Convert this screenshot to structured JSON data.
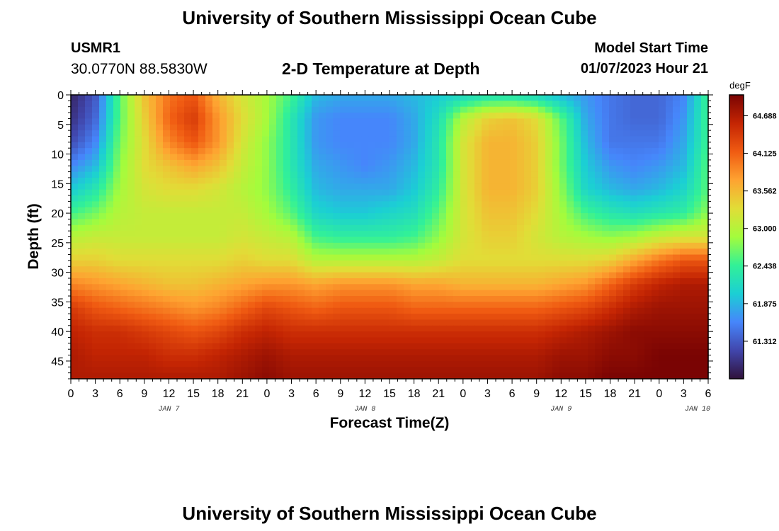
{
  "page": {
    "title_top": "University of Southern Mississippi Ocean Cube",
    "title_bottom": "University of Southern Mississippi Ocean Cube"
  },
  "header": {
    "station_id": "USMR1",
    "station_coords": "30.0770N  88.5830W",
    "plot_title": "2-D Temperature at Depth",
    "model_start_label": "Model Start Time",
    "model_start_value": "01/07/2023 Hour 21"
  },
  "chart_data": {
    "type": "heatmap",
    "title": "2-D Temperature at Depth",
    "xlabel": "Forecast Time(Z)",
    "ylabel": "Depth (ft)",
    "x_ticks": [
      "0",
      "3",
      "6",
      "9",
      "12",
      "15",
      "18",
      "21",
      "0",
      "3",
      "6",
      "9",
      "12",
      "15",
      "18",
      "21",
      "0",
      "3",
      "6",
      "9",
      "12",
      "15",
      "18",
      "21",
      "0",
      "3",
      "6"
    ],
    "x_range_hours": [
      0,
      78
    ],
    "day_labels": [
      {
        "label": "JAN 7",
        "hour": 12
      },
      {
        "label": "JAN 8",
        "hour": 36
      },
      {
        "label": "JAN 9",
        "hour": 60
      },
      {
        "label": "JAN 10",
        "hour": 81
      }
    ],
    "y_ticks": [
      0,
      5,
      10,
      15,
      20,
      25,
      30,
      35,
      40,
      45
    ],
    "ylim": [
      0,
      48
    ],
    "y_inverted": true,
    "colorbar": {
      "unit": "degF",
      "ticks": [
        "64.688",
        "64.125",
        "63.562",
        "63.000",
        "62.438",
        "61.875",
        "61.312"
      ],
      "range": [
        60.75,
        65.0
      ],
      "colormap": [
        "#30123b",
        "#4146ac",
        "#4686fb",
        "#1bcfd4",
        "#32f197",
        "#a4fc3c",
        "#e1dd37",
        "#fea331",
        "#f05b12",
        "#c42503",
        "#7a0403"
      ]
    },
    "grid": {
      "hours": [
        0,
        3,
        6,
        9,
        12,
        15,
        18,
        21,
        24,
        27,
        30,
        33,
        36,
        39,
        42,
        45,
        48,
        51,
        54,
        57,
        60,
        63,
        66,
        69,
        72,
        75,
        78
      ],
      "depths_ft": [
        0,
        4,
        8,
        12,
        16,
        20,
        24,
        28,
        32,
        36,
        40,
        44,
        48
      ],
      "values_degF": [
        [
          60.9,
          61.3,
          62.6,
          63.5,
          64.0,
          64.2,
          63.6,
          63.2,
          62.9,
          62.5,
          61.9,
          61.8,
          61.8,
          61.8,
          61.9,
          62.0,
          62.1,
          62.2,
          62.2,
          62.1,
          61.9,
          61.7,
          61.5,
          61.4,
          61.4,
          61.6,
          62.5
        ],
        [
          61.0,
          61.4,
          62.6,
          63.4,
          64.1,
          64.4,
          63.8,
          63.3,
          62.9,
          62.3,
          61.7,
          61.6,
          61.6,
          61.6,
          61.8,
          62.2,
          63.0,
          63.4,
          63.5,
          63.3,
          62.6,
          61.8,
          61.5,
          61.4,
          61.4,
          61.7,
          62.5
        ],
        [
          61.2,
          61.6,
          62.7,
          63.3,
          63.9,
          64.2,
          63.8,
          63.2,
          62.8,
          62.3,
          61.7,
          61.6,
          61.6,
          61.6,
          61.8,
          62.3,
          63.2,
          63.6,
          63.6,
          63.4,
          62.7,
          61.9,
          61.5,
          61.5,
          61.5,
          61.8,
          62.5
        ],
        [
          61.6,
          61.9,
          62.8,
          63.3,
          63.5,
          63.7,
          63.5,
          63.1,
          62.8,
          62.3,
          61.8,
          61.7,
          61.6,
          61.7,
          61.9,
          62.3,
          63.2,
          63.6,
          63.6,
          63.4,
          62.7,
          62.0,
          61.7,
          61.6,
          61.7,
          61.9,
          62.6
        ],
        [
          62.0,
          62.3,
          62.9,
          63.2,
          63.3,
          63.3,
          63.2,
          63.0,
          62.8,
          62.4,
          61.9,
          61.8,
          61.8,
          61.8,
          62.0,
          62.4,
          63.2,
          63.6,
          63.6,
          63.4,
          62.8,
          62.1,
          61.9,
          61.8,
          61.9,
          62.1,
          62.6
        ],
        [
          62.5,
          62.7,
          63.0,
          63.1,
          63.1,
          63.1,
          63.1,
          63.1,
          62.9,
          62.6,
          62.1,
          62.0,
          62.0,
          62.1,
          62.2,
          62.6,
          63.2,
          63.5,
          63.5,
          63.3,
          62.9,
          62.5,
          62.3,
          62.2,
          62.3,
          62.4,
          62.8
        ],
        [
          63.0,
          63.1,
          63.1,
          63.1,
          63.1,
          63.1,
          63.1,
          63.2,
          63.1,
          63.0,
          62.5,
          62.4,
          62.4,
          62.4,
          62.5,
          62.8,
          63.2,
          63.4,
          63.4,
          63.2,
          63.0,
          62.9,
          62.8,
          62.9,
          63.1,
          63.2,
          63.2
        ],
        [
          63.4,
          63.4,
          63.3,
          63.3,
          63.3,
          63.3,
          63.3,
          63.4,
          63.3,
          63.3,
          63.0,
          63.0,
          63.0,
          63.0,
          63.0,
          63.1,
          63.3,
          63.3,
          63.3,
          63.3,
          63.3,
          63.3,
          63.4,
          63.7,
          64.0,
          64.2,
          64.2
        ],
        [
          63.9,
          63.8,
          63.7,
          63.6,
          63.5,
          63.5,
          63.6,
          63.7,
          63.8,
          63.8,
          63.7,
          63.8,
          63.8,
          63.8,
          63.7,
          63.7,
          63.6,
          63.6,
          63.6,
          63.6,
          63.7,
          63.8,
          64.1,
          64.4,
          64.6,
          64.7,
          64.7
        ],
        [
          64.4,
          64.2,
          64.1,
          64.0,
          63.9,
          63.8,
          63.9,
          64.1,
          64.3,
          64.2,
          64.1,
          64.2,
          64.2,
          64.2,
          64.1,
          64.1,
          64.1,
          64.1,
          64.1,
          64.1,
          64.2,
          64.3,
          64.5,
          64.7,
          64.8,
          64.8,
          64.8
        ],
        [
          64.6,
          64.5,
          64.5,
          64.4,
          64.3,
          64.2,
          64.3,
          64.5,
          64.6,
          64.5,
          64.5,
          64.5,
          64.5,
          64.5,
          64.5,
          64.5,
          64.5,
          64.5,
          64.5,
          64.5,
          64.6,
          64.7,
          64.8,
          64.9,
          64.9,
          64.9,
          64.9
        ],
        [
          64.7,
          64.6,
          64.6,
          64.6,
          64.5,
          64.5,
          64.6,
          64.7,
          64.8,
          64.7,
          64.7,
          64.7,
          64.7,
          64.7,
          64.7,
          64.7,
          64.7,
          64.7,
          64.7,
          64.7,
          64.8,
          64.8,
          64.9,
          64.9,
          65.0,
          65.0,
          65.0
        ],
        [
          64.7,
          64.7,
          64.7,
          64.7,
          64.7,
          64.7,
          64.7,
          64.8,
          64.9,
          64.8,
          64.8,
          64.8,
          64.8,
          64.8,
          64.8,
          64.8,
          64.8,
          64.8,
          64.8,
          64.8,
          64.9,
          64.9,
          65.0,
          65.0,
          65.0,
          65.0,
          65.0
        ]
      ]
    }
  }
}
